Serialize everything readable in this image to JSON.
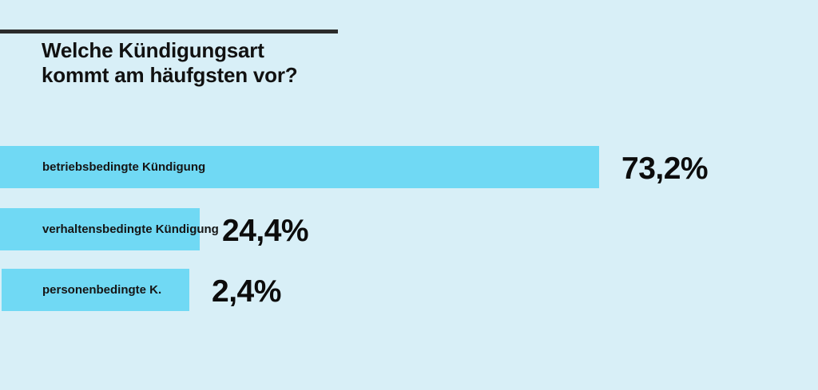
{
  "colors": {
    "background": "#d8eff7",
    "bar": "#70d9f4",
    "rule": "#2b2b2b"
  },
  "title": {
    "line1": "Welche Kündigungsart",
    "line2": "kommt am häufgsten vor?"
  },
  "chart_data": {
    "type": "bar",
    "orientation": "horizontal",
    "title": "Welche Kündigungsart kommt am häufgsten vor?",
    "unit": "%",
    "xlim": [
      0,
      100
    ],
    "grid": false,
    "legend": "none",
    "categories": [
      "betriebsbedingte Kündigung",
      "verhaltensbedingte Kündigung",
      "personenbedingte K."
    ],
    "values": [
      73.2,
      24.4,
      2.4
    ],
    "data_labels": [
      "73,2%",
      "24,4%",
      "2,4%"
    ]
  }
}
